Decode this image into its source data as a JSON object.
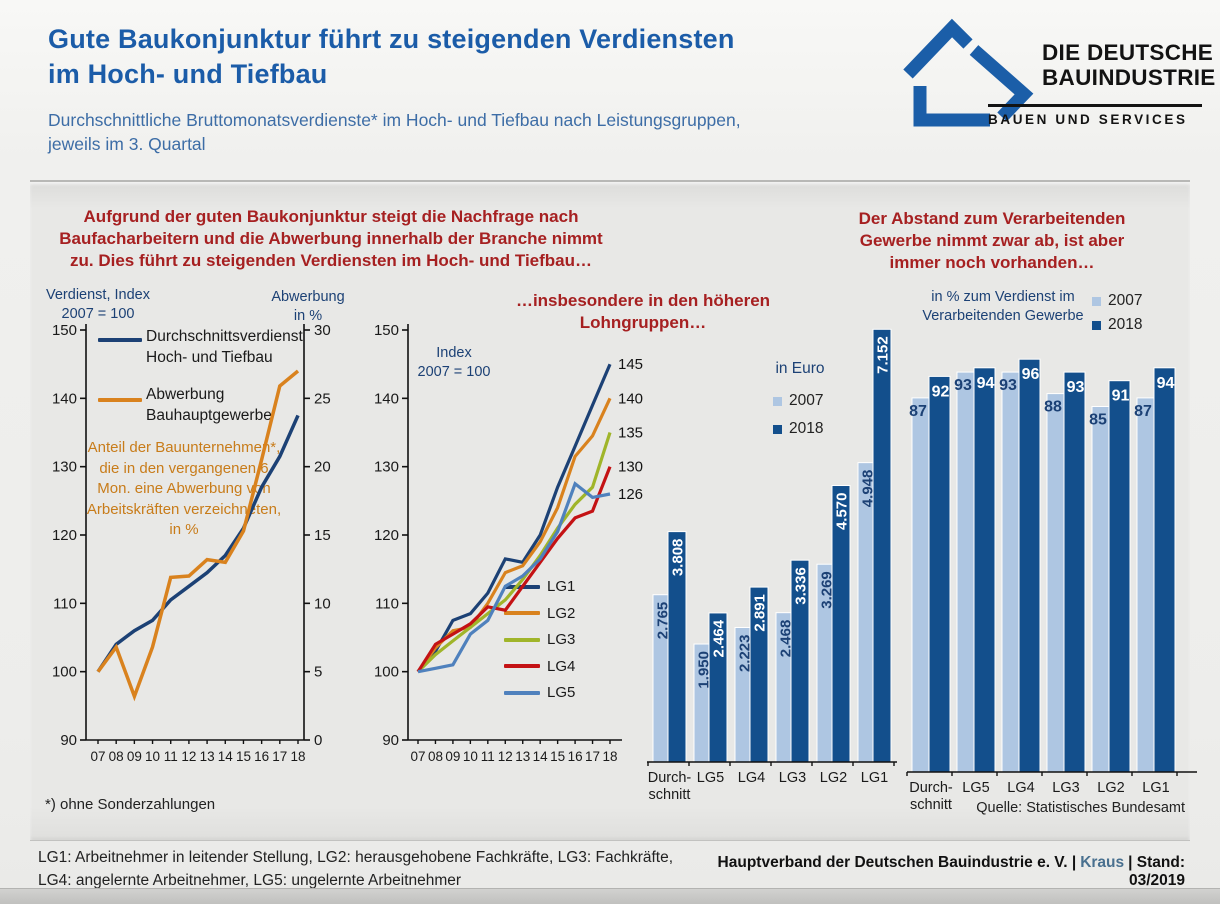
{
  "colors": {
    "navy": "#1c4175",
    "orange": "#d9821e",
    "green": "#a0b52a",
    "red": "#c41214",
    "lightblue": "#4f81bd",
    "lightbar": "#aec6e2",
    "darkbar": "#134f8c",
    "title_blue": "#1b5ca8",
    "subtitle_blue": "#3d6da6",
    "heading_red": "#a62021",
    "annotation_orange": "#c87c1a"
  },
  "header": {
    "title_lines": [
      "Gute Baukonjunktur führt zu steigenden Verdiensten",
      "im Hoch- und Tiefbau"
    ],
    "subtitle_lines": [
      "Durchschnittliche Bruttomonatsverdienste* im Hoch- und Tiefbau nach Leistungsgruppen,",
      "jeweils im 3. Quartal"
    ],
    "logo": {
      "name_lines": [
        "DIE DEUTSCHE",
        "BAUINDUSTRIE"
      ],
      "tagline": "BAUEN UND SERVICES"
    }
  },
  "annotations": {
    "left_lines": [
      "Aufgrund  der guten Baukonjunktur  steigt  die Nachfrage nach",
      "Baufacharbeitern und die Abwerbung innerhalb der Branche nimmt",
      "zu. Dies führt  zu steigenden Verdiensten im Hoch-  und Tiefbau…"
    ],
    "mid_lines": [
      "…insbesondere  in den höheren",
      "Lohngruppen…"
    ],
    "right_lines": [
      "Der Abstand  zum Verarbeitenden",
      "Gewerbe nimmt zwar ab, ist aber",
      "immer noch vorhanden…"
    ]
  },
  "chart_data": [
    {
      "id": "chart1",
      "type": "line",
      "x": [
        "07",
        "08",
        "09",
        "10",
        "11",
        "12",
        "13",
        "14",
        "15",
        "16",
        "17",
        "18"
      ],
      "ylim": [
        90,
        150
      ],
      "ytick": 10,
      "ylim_right": [
        0,
        30
      ],
      "ytick_right": 5,
      "axis_left_title_lines": [
        "Verdienst, Index",
        "2007 = 100"
      ],
      "axis_right_title_lines": [
        "Abwerbung",
        "in %"
      ],
      "series": [
        {
          "name": "Durchschnittsverdienst Hoch- und Tiefbau",
          "name_lines": [
            "Durchschnittsverdienst",
            "Hoch- und Tiefbau"
          ],
          "axis": "left",
          "color": "navy",
          "values": [
            100,
            104,
            106,
            107.5,
            110.5,
            112.5,
            114.5,
            117,
            121,
            127,
            131.5,
            137.5
          ]
        },
        {
          "name": "Abwerbung Bauhauptgewerbe",
          "name_lines": [
            "Abwerbung",
            "Bauhauptgewerbe"
          ],
          "axis": "right",
          "color": "orange",
          "values": [
            5,
            6.8,
            3.2,
            6.8,
            11.9,
            12,
            13.2,
            13,
            15.3,
            20.5,
            25.9,
            27
          ]
        }
      ],
      "annotation": "Anteil der Bauunternehmen*, die in den vergangenen 6 Mon. eine Abwerbung von Arbeitskräften verzeichneten, in %"
    },
    {
      "id": "chart2",
      "type": "line",
      "inner_label_lines": [
        "Index",
        "2007 = 100"
      ],
      "x": [
        "07",
        "08",
        "09",
        "10",
        "11",
        "12",
        "13",
        "14",
        "15",
        "16",
        "17",
        "18"
      ],
      "ylim": [
        90,
        150
      ],
      "ytick": 10,
      "series": [
        {
          "name": "LG1",
          "color": "navy",
          "end_label": "145",
          "values": [
            100,
            103,
            107.5,
            108.5,
            111.5,
            116.5,
            116,
            120,
            127,
            133,
            139,
            145
          ]
        },
        {
          "name": "LG2",
          "color": "orange",
          "end_label": "140",
          "values": [
            100,
            103.5,
            106,
            106.5,
            110,
            114.5,
            115.5,
            119,
            124,
            131.5,
            134.5,
            140
          ]
        },
        {
          "name": "LG3",
          "color": "green",
          "end_label": "135",
          "values": [
            100,
            102.5,
            104.5,
            106.5,
            108.5,
            110.5,
            113.5,
            117,
            121,
            124.5,
            127,
            135
          ]
        },
        {
          "name": "LG4",
          "color": "red",
          "end_label": "130",
          "values": [
            100,
            104,
            105.5,
            107,
            109.5,
            109,
            112.5,
            116,
            119.5,
            122.5,
            123.5,
            130
          ]
        },
        {
          "name": "LG5",
          "color": "lightblue",
          "end_label": "126",
          "values": [
            100,
            100.5,
            101,
            105.5,
            107.5,
            112.5,
            114,
            116.5,
            120.5,
            127.5,
            125.5,
            126
          ]
        }
      ]
    },
    {
      "id": "chart3",
      "type": "bar",
      "unit_label": "in Euro",
      "categories": [
        [
          "Durch-",
          "schnitt"
        ],
        [
          "LG5"
        ],
        [
          "LG4"
        ],
        [
          "LG3"
        ],
        [
          "LG2"
        ],
        [
          "LG1"
        ]
      ],
      "series": [
        {
          "name": "2007",
          "color": "lightbar",
          "values": [
            2765,
            1950,
            2223,
            2468,
            3269,
            4948
          ],
          "labels": [
            "2.765",
            "1.950",
            "2.223",
            "2.468",
            "3.269",
            "4.948"
          ]
        },
        {
          "name": "2018",
          "color": "darkbar",
          "values": [
            3808,
            2464,
            2891,
            3336,
            4570,
            7152
          ],
          "labels": [
            "3.808",
            "2.464",
            "2.891",
            "3.336",
            "4.570",
            "7.152"
          ]
        }
      ]
    },
    {
      "id": "chart4",
      "type": "bar",
      "unit_label_lines": [
        "in % zum Verdienst im",
        "Verarbeitenden Gewerbe"
      ],
      "categories": [
        [
          "Durch-",
          "schnitt"
        ],
        [
          "LG5"
        ],
        [
          "LG4"
        ],
        [
          "LG3"
        ],
        [
          "LG2"
        ],
        [
          "LG1"
        ]
      ],
      "series": [
        {
          "name": "2007",
          "color": "lightbar",
          "values": [
            87,
            93,
            93,
            88,
            85,
            87
          ],
          "labels": [
            "87",
            "93",
            "93",
            "88",
            "85",
            "87"
          ]
        },
        {
          "name": "2018",
          "color": "darkbar",
          "values": [
            92,
            94,
            96,
            93,
            91,
            94
          ],
          "labels": [
            "92",
            "94",
            "96",
            "93",
            "91",
            "94"
          ]
        }
      ]
    }
  ],
  "footer": {
    "footnote": "*) ohne Sonderzahlungen",
    "source": "Quelle: Statistisches Bundesamt",
    "lg_definition_lines": [
      "LG1: Arbeitnehmer in leitender Stellung, LG2: herausgehobene Fachkräfte, LG3: Fachkräfte,",
      "LG4: angelernte Arbeitnehmer, LG5: ungelernte Arbeitnehmer"
    ],
    "credit": {
      "part1": "Hauptverband der Deutschen Bauindustrie e. V. |",
      "author": "Kraus",
      "part2": "| Stand: 03/2019"
    }
  }
}
